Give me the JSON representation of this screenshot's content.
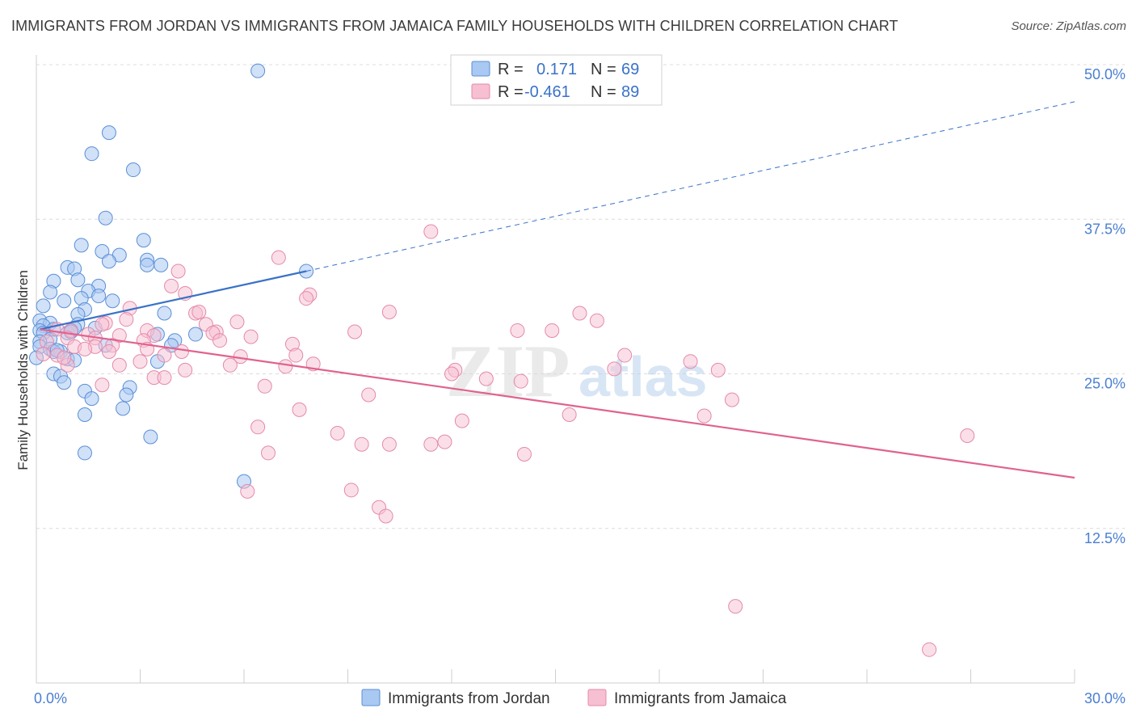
{
  "title": "IMMIGRANTS FROM JORDAN VS IMMIGRANTS FROM JAMAICA FAMILY HOUSEHOLDS WITH CHILDREN CORRELATION CHART",
  "source": "Source: ZipAtlas.com",
  "watermark": {
    "zip": "ZIP",
    "atlas": "atlas"
  },
  "colors": {
    "jordan_fill": "#a9c8f2",
    "jordan_stroke": "#5b8fd6",
    "jordan_line": "#3a72c8",
    "jamaica_fill": "#f7bfd2",
    "jamaica_stroke": "#e48aaa",
    "jamaica_line": "#e0628f",
    "grid": "#dcdcdc",
    "tick_label": "#4a7fd0"
  },
  "legend_box": {
    "rows": [
      {
        "r_label": "R =",
        "r_value": "0.171",
        "n_label": "N =",
        "n_value": "69"
      },
      {
        "r_label": "R =",
        "r_value": "-0.461",
        "n_label": "N =",
        "n_value": "89"
      }
    ]
  },
  "chart_data": {
    "type": "scatter",
    "title": "IMMIGRANTS FROM JORDAN VS IMMIGRANTS FROM JAMAICA FAMILY HOUSEHOLDS WITH CHILDREN CORRELATION CHART",
    "xlabel": "",
    "ylabel": "Family Households with Children",
    "xlim": [
      0,
      30
    ],
    "ylim": [
      0,
      50
    ],
    "x_tick_labels": [
      "0.0%",
      "30.0%"
    ],
    "y_ticks": [
      12.5,
      25.0,
      37.5,
      50.0
    ],
    "y_tick_labels": [
      "12.5%",
      "25.0%",
      "37.5%",
      "50.0%"
    ],
    "legend": [
      "Immigrants from Jordan",
      "Immigrants from Jamaica"
    ],
    "series": [
      {
        "name": "Immigrants from Jordan",
        "R": 0.171,
        "N": 69,
        "trend": {
          "solid": [
            [
              0.1,
              28.6
            ],
            [
              7.8,
              33.3
            ]
          ],
          "dashed_to": [
            30,
            47.0
          ]
        },
        "points": [
          [
            6.4,
            49.5
          ],
          [
            2.1,
            44.5
          ],
          [
            1.6,
            42.8
          ],
          [
            2.8,
            41.5
          ],
          [
            2.0,
            37.6
          ],
          [
            3.1,
            35.8
          ],
          [
            1.3,
            35.4
          ],
          [
            1.9,
            34.9
          ],
          [
            2.4,
            34.6
          ],
          [
            2.1,
            34.1
          ],
          [
            3.2,
            34.2
          ],
          [
            3.6,
            33.8
          ],
          [
            0.9,
            33.6
          ],
          [
            1.1,
            33.5
          ],
          [
            3.2,
            33.8
          ],
          [
            7.8,
            33.3
          ],
          [
            1.2,
            32.6
          ],
          [
            0.5,
            32.5
          ],
          [
            1.8,
            32.1
          ],
          [
            1.5,
            31.7
          ],
          [
            0.4,
            31.6
          ],
          [
            1.8,
            31.3
          ],
          [
            1.3,
            31.1
          ],
          [
            0.8,
            30.9
          ],
          [
            2.2,
            30.9
          ],
          [
            0.2,
            30.5
          ],
          [
            1.4,
            30.2
          ],
          [
            1.2,
            29.8
          ],
          [
            3.7,
            29.9
          ],
          [
            0.1,
            29.3
          ],
          [
            0.4,
            29.1
          ],
          [
            0.2,
            28.9
          ],
          [
            1.2,
            29.0
          ],
          [
            0.5,
            28.6
          ],
          [
            1.1,
            28.7
          ],
          [
            0.1,
            28.5
          ],
          [
            3.5,
            28.2
          ],
          [
            0.2,
            28.3
          ],
          [
            0.9,
            28.3
          ],
          [
            1.7,
            28.7
          ],
          [
            4.6,
            28.2
          ],
          [
            1.0,
            28.5
          ],
          [
            0.4,
            27.8
          ],
          [
            0.1,
            27.6
          ],
          [
            4.0,
            27.7
          ],
          [
            3.9,
            27.3
          ],
          [
            0.1,
            27.2
          ],
          [
            0.4,
            27.0
          ],
          [
            0.7,
            26.8
          ],
          [
            0.5,
            26.8
          ],
          [
            2.0,
            27.3
          ],
          [
            0.9,
            26.2
          ],
          [
            1.1,
            26.1
          ],
          [
            3.5,
            26.0
          ],
          [
            0.0,
            26.3
          ],
          [
            0.5,
            25.0
          ],
          [
            0.7,
            24.8
          ],
          [
            0.8,
            24.3
          ],
          [
            2.7,
            23.9
          ],
          [
            1.4,
            23.6
          ],
          [
            1.6,
            23.0
          ],
          [
            2.6,
            23.3
          ],
          [
            2.5,
            22.2
          ],
          [
            1.4,
            21.7
          ],
          [
            3.3,
            19.9
          ],
          [
            1.4,
            18.6
          ],
          [
            6.0,
            16.3
          ],
          [
            0.6,
            26.9
          ],
          [
            1.0,
            28.4
          ]
        ]
      },
      {
        "name": "Immigrants from Jamaica",
        "R": -0.461,
        "N": 89,
        "trend": {
          "solid": [
            [
              0.1,
              28.6
            ],
            [
              30,
              16.6
            ]
          ]
        },
        "points": [
          [
            11.4,
            36.5
          ],
          [
            7.0,
            34.4
          ],
          [
            4.1,
            33.3
          ],
          [
            3.9,
            32.1
          ],
          [
            4.3,
            31.5
          ],
          [
            7.9,
            31.4
          ],
          [
            7.8,
            31.1
          ],
          [
            2.7,
            30.3
          ],
          [
            4.6,
            29.9
          ],
          [
            10.2,
            30.0
          ],
          [
            15.7,
            29.9
          ],
          [
            4.7,
            30.0
          ],
          [
            16.2,
            29.3
          ],
          [
            2.0,
            29.1
          ],
          [
            5.8,
            29.2
          ],
          [
            2.6,
            29.4
          ],
          [
            4.9,
            29.0
          ],
          [
            1.9,
            29.0
          ],
          [
            14.9,
            28.5
          ],
          [
            9.2,
            28.4
          ],
          [
            13.9,
            28.5
          ],
          [
            0.6,
            28.6
          ],
          [
            1.0,
            28.5
          ],
          [
            5.2,
            28.4
          ],
          [
            3.2,
            28.5
          ],
          [
            5.1,
            28.3
          ],
          [
            2.4,
            28.1
          ],
          [
            3.4,
            28.1
          ],
          [
            6.2,
            28.0
          ],
          [
            1.5,
            28.2
          ],
          [
            0.9,
            27.9
          ],
          [
            3.1,
            27.7
          ],
          [
            5.3,
            27.7
          ],
          [
            1.7,
            27.9
          ],
          [
            0.3,
            27.6
          ],
          [
            7.4,
            27.4
          ],
          [
            2.2,
            27.3
          ],
          [
            1.1,
            27.2
          ],
          [
            1.7,
            27.2
          ],
          [
            3.2,
            27.0
          ],
          [
            2.1,
            26.8
          ],
          [
            0.2,
            26.6
          ],
          [
            0.6,
            26.5
          ],
          [
            5.9,
            26.4
          ],
          [
            7.5,
            26.5
          ],
          [
            3.7,
            26.5
          ],
          [
            17.0,
            26.5
          ],
          [
            18.9,
            26.0
          ],
          [
            2.4,
            25.7
          ],
          [
            5.6,
            25.7
          ],
          [
            8.0,
            25.8
          ],
          [
            0.9,
            25.7
          ],
          [
            4.3,
            25.3
          ],
          [
            7.2,
            25.6
          ],
          [
            12.1,
            25.3
          ],
          [
            16.7,
            25.4
          ],
          [
            19.7,
            25.3
          ],
          [
            3.4,
            24.7
          ],
          [
            3.7,
            24.7
          ],
          [
            13.0,
            24.6
          ],
          [
            14.0,
            24.4
          ],
          [
            1.9,
            24.1
          ],
          [
            6.6,
            24.0
          ],
          [
            20.1,
            22.9
          ],
          [
            9.6,
            23.3
          ],
          [
            7.6,
            22.1
          ],
          [
            15.4,
            21.7
          ],
          [
            19.3,
            21.6
          ],
          [
            12.3,
            21.2
          ],
          [
            6.4,
            20.7
          ],
          [
            8.7,
            20.2
          ],
          [
            9.4,
            19.3
          ],
          [
            10.2,
            19.3
          ],
          [
            11.4,
            19.3
          ],
          [
            11.8,
            19.5
          ],
          [
            14.1,
            18.5
          ],
          [
            26.9,
            20.0
          ],
          [
            6.7,
            18.6
          ],
          [
            9.1,
            15.6
          ],
          [
            6.1,
            15.5
          ],
          [
            9.9,
            14.2
          ],
          [
            10.1,
            13.5
          ],
          [
            20.2,
            6.2
          ],
          [
            25.8,
            2.7
          ],
          [
            1.4,
            27.0
          ],
          [
            4.2,
            26.8
          ],
          [
            3.0,
            26.0
          ],
          [
            12.0,
            25.0
          ],
          [
            0.8,
            26.3
          ]
        ]
      }
    ]
  }
}
